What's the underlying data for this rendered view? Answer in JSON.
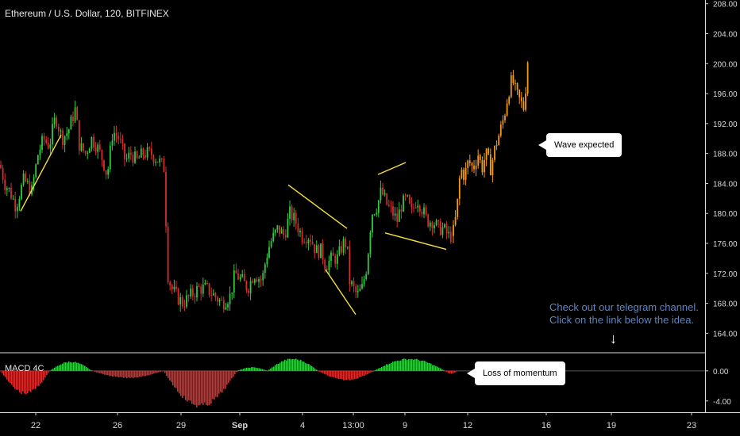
{
  "header": {
    "title": "Ethereum / U.S. Dollar, 120, BITFINEX"
  },
  "indicator": {
    "title": "MACD 4C"
  },
  "annotations": {
    "wave_expected": "Wave expected",
    "loss_of_momentum": "Loss of momentum",
    "promo_line1": "Check out our telegram channel.",
    "promo_line2": "Click on the link below the idea.",
    "promo_arrow": "↓"
  },
  "colors": {
    "up": "#2ecc40",
    "down": "#d32f2f",
    "projection": "#f39c12",
    "trendline": "#f7e03a",
    "promo": "#5b84c4"
  },
  "chart_data": [
    {
      "type": "candlestick",
      "title": "Ethereum / U.S. Dollar, 120, BITFINEX",
      "y_ticks": [
        208,
        204,
        200,
        196,
        192,
        188,
        184,
        180,
        176,
        172,
        168,
        164
      ],
      "ylim": [
        161.5,
        208.5
      ],
      "x_ticks": [
        "22",
        "26",
        "29",
        "Sep",
        "4",
        "13:00",
        "9",
        "12",
        "16",
        "19",
        "23"
      ],
      "close_series": [
        [
          0,
          186.5
        ],
        [
          6,
          184
        ],
        [
          12,
          183
        ],
        [
          20,
          181
        ],
        [
          30,
          184.5
        ],
        [
          40,
          183
        ],
        [
          48,
          188
        ],
        [
          55,
          190
        ],
        [
          62,
          189
        ],
        [
          70,
          193
        ],
        [
          78,
          190
        ],
        [
          86,
          191
        ],
        [
          95,
          194
        ],
        [
          100,
          189
        ],
        [
          108,
          188
        ],
        [
          115,
          190
        ],
        [
          122,
          189
        ],
        [
          130,
          187
        ],
        [
          135,
          185
        ],
        [
          142,
          191
        ],
        [
          150,
          190
        ],
        [
          158,
          187
        ],
        [
          165,
          188
        ],
        [
          172,
          187
        ],
        [
          180,
          188
        ],
        [
          190,
          188
        ],
        [
          200,
          187
        ],
        [
          207,
          186
        ],
        [
          211,
          172
        ],
        [
          216,
          170
        ],
        [
          222,
          169
        ],
        [
          230,
          168
        ],
        [
          240,
          169
        ],
        [
          250,
          170
        ],
        [
          260,
          170
        ],
        [
          270,
          169
        ],
        [
          280,
          168
        ],
        [
          290,
          169
        ],
        [
          296,
          172
        ],
        [
          305,
          171
        ],
        [
          312,
          170
        ],
        [
          320,
          172
        ],
        [
          330,
          171
        ],
        [
          335,
          174
        ],
        [
          340,
          176
        ],
        [
          350,
          178
        ],
        [
          358,
          177
        ],
        [
          365,
          180
        ],
        [
          372,
          179
        ],
        [
          380,
          177
        ],
        [
          390,
          177
        ],
        [
          398,
          175
        ],
        [
          405,
          175
        ],
        [
          410,
          173
        ],
        [
          418,
          174
        ],
        [
          425,
          174
        ],
        [
          432,
          176
        ],
        [
          437,
          176
        ],
        [
          440,
          171
        ],
        [
          445,
          170
        ],
        [
          450,
          169
        ],
        [
          456,
          170
        ],
        [
          462,
          173
        ],
        [
          468,
          180
        ],
        [
          475,
          181
        ],
        [
          480,
          183
        ],
        [
          488,
          181
        ],
        [
          495,
          180
        ],
        [
          500,
          179
        ],
        [
          505,
          181
        ],
        [
          512,
          182
        ],
        [
          518,
          180
        ],
        [
          525,
          182
        ],
        [
          530,
          181
        ],
        [
          538,
          179
        ],
        [
          545,
          179
        ],
        [
          552,
          178
        ],
        [
          558,
          178
        ],
        [
          565,
          177
        ],
        [
          570,
          177
        ]
      ],
      "projection_series": [
        [
          570,
          177
        ],
        [
          575,
          180
        ],
        [
          580,
          186
        ],
        [
          585,
          185
        ],
        [
          590,
          187
        ],
        [
          596,
          186
        ],
        [
          602,
          188
        ],
        [
          607,
          186
        ],
        [
          612,
          188
        ],
        [
          618,
          186
        ],
        [
          624,
          189
        ],
        [
          630,
          191
        ],
        [
          635,
          193
        ],
        [
          640,
          196
        ],
        [
          645,
          198
        ],
        [
          650,
          196
        ],
        [
          655,
          195
        ],
        [
          660,
          194
        ],
        [
          665,
          201
        ]
      ],
      "trendlines": [
        [
          [
            26,
            180.3
          ],
          [
            77,
            190.5
          ]
        ],
        [
          [
            363,
            183.8
          ],
          [
            437,
            178
          ]
        ],
        [
          [
            410,
            172.5
          ],
          [
            448,
            166.5
          ]
        ],
        [
          [
            476,
            185.2
          ],
          [
            511,
            186.8
          ]
        ],
        [
          [
            485,
            177.4
          ],
          [
            562,
            175.2
          ]
        ]
      ]
    },
    {
      "type": "histogram",
      "title": "MACD 4C",
      "y_ticks": [
        0.0,
        -4.0
      ],
      "ylim": [
        -5.5,
        2.3
      ],
      "segments": [
        {
          "x": [
            0,
            62
          ],
          "peak": -3.2,
          "color": "down"
        },
        {
          "x": [
            62,
            115
          ],
          "peak": 1.3,
          "color": "up"
        },
        {
          "x": [
            115,
            205
          ],
          "peak": -1.0,
          "color": "down"
        },
        {
          "x": [
            205,
            298
          ],
          "peak": -5.0,
          "color": "down"
        },
        {
          "x": [
            298,
            336
          ],
          "peak": 0.5,
          "color": "up"
        },
        {
          "x": [
            336,
            400
          ],
          "peak": 1.7,
          "color": "up"
        },
        {
          "x": [
            400,
            470
          ],
          "peak": -1.3,
          "color": "down"
        },
        {
          "x": [
            470,
            560
          ],
          "peak": 1.7,
          "color": "up"
        },
        {
          "x": [
            560,
            575
          ],
          "peak": -0.4,
          "color": "down"
        }
      ]
    }
  ]
}
